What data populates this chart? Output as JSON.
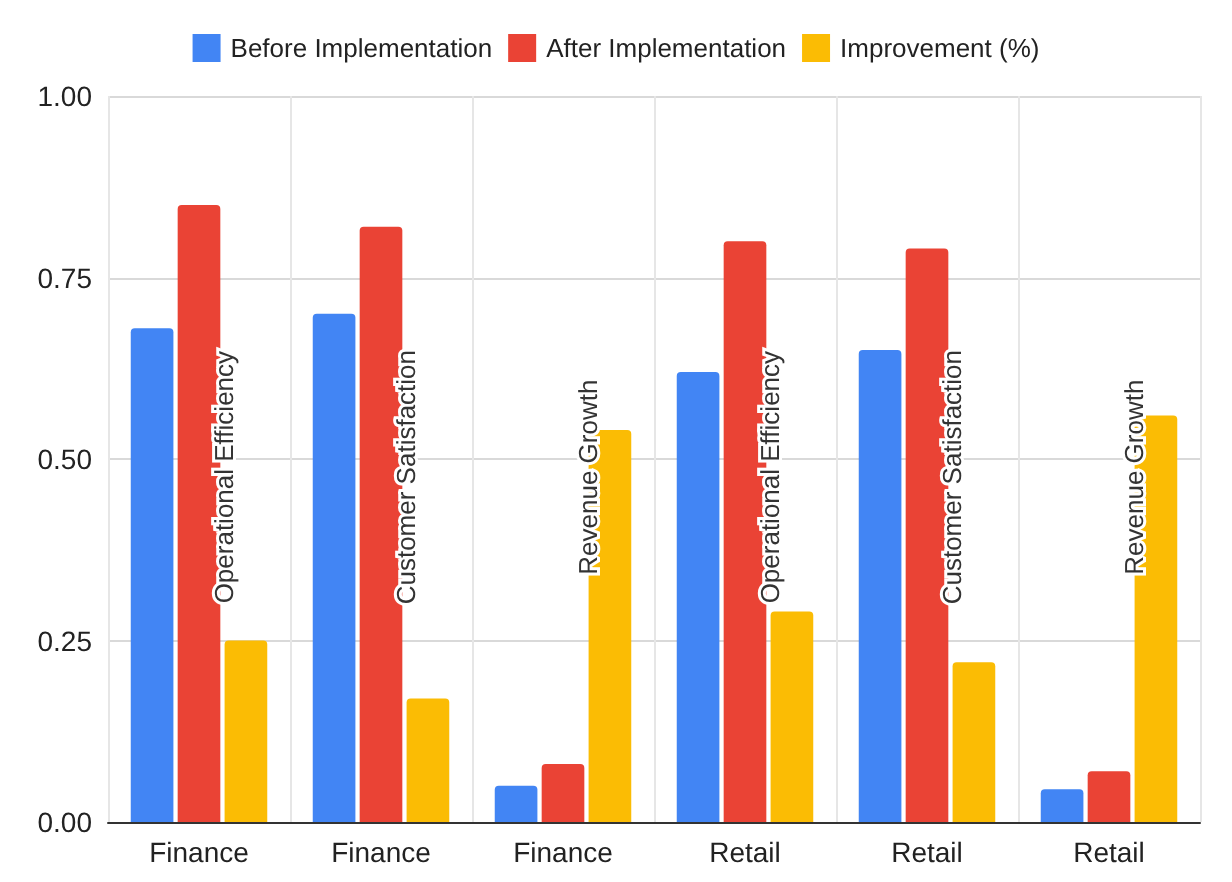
{
  "chart_data": {
    "type": "bar",
    "categories": [
      "Finance",
      "Finance",
      "Finance",
      "Retail",
      "Retail",
      "Retail"
    ],
    "series": [
      {
        "name": "Before Implementation",
        "color": "#4285f4",
        "values": [
          0.68,
          0.7,
          0.05,
          0.62,
          0.65,
          0.045
        ]
      },
      {
        "name": "After Implementation",
        "color": "#ea4335",
        "values": [
          0.85,
          0.82,
          0.08,
          0.8,
          0.79,
          0.07
        ]
      },
      {
        "name": "Improvement (%)",
        "color": "#fbbc04",
        "values": [
          0.25,
          0.17,
          0.54,
          0.29,
          0.22,
          0.56
        ]
      }
    ],
    "annotations": [
      "Operational Efficiency",
      "Customer Satisfaction",
      "Revenue Growth",
      "Operational Efficiency",
      "Customer Satisfaction",
      "Revenue Growth"
    ],
    "ylim": [
      0,
      1
    ],
    "yticks": [
      {
        "value": 0,
        "label": "0.00"
      },
      0.25,
      {
        "value": 0.5,
        "label": "0.50"
      },
      0.75,
      {
        "value": 1,
        "label": "1.00"
      }
    ],
    "grid": true,
    "legend": "top"
  }
}
